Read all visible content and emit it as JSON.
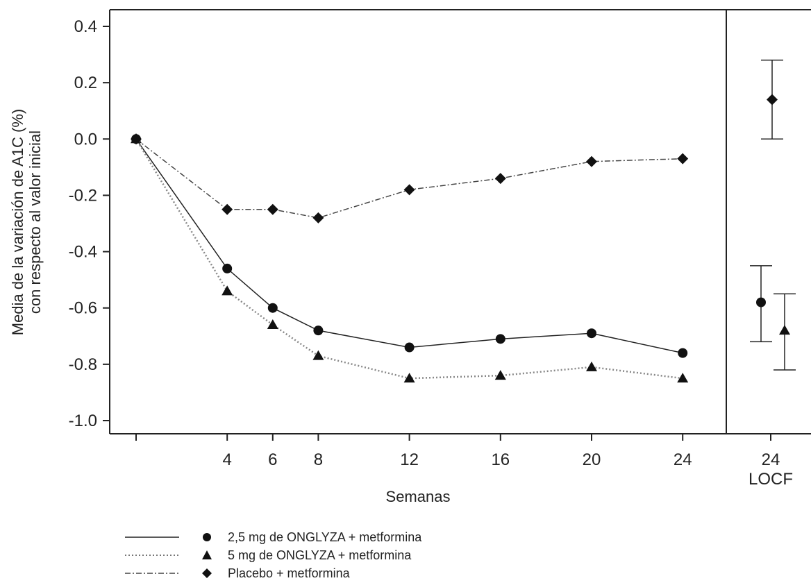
{
  "chart_data": {
    "type": "line",
    "xlabel": "Semanas",
    "ylabel_line1": "Media de la variación de A1C (%)",
    "ylabel_line2": "con respecto al valor inicial",
    "ylim": [
      -1.0,
      0.4
    ],
    "yticks": [
      "0.4",
      "0.2",
      "0.0",
      "-0.2",
      "-0.4",
      "-0.6",
      "-0.8",
      "-1.0"
    ],
    "ytick_values": [
      0.4,
      0.2,
      0.0,
      -0.2,
      -0.4,
      -0.6,
      -0.8,
      -1.0
    ],
    "xticks": [
      4,
      6,
      8,
      12,
      16,
      20,
      24
    ],
    "x": [
      0,
      4,
      6,
      8,
      12,
      16,
      20,
      24
    ],
    "series": [
      {
        "name": "2,5 mg de ONGLYZA + metformina",
        "marker": "circle",
        "line_style": "solid",
        "values": [
          0.0,
          -0.46,
          -0.6,
          -0.68,
          -0.74,
          -0.71,
          -0.69,
          -0.76
        ],
        "locf": {
          "mean": -0.58,
          "lower": -0.72,
          "upper": -0.45
        }
      },
      {
        "name": "5 mg de ONGLYZA + metformina",
        "marker": "triangle",
        "line_style": "dotted",
        "values": [
          0.0,
          -0.54,
          -0.66,
          -0.77,
          -0.85,
          -0.84,
          -0.81,
          -0.85
        ],
        "locf": {
          "mean": -0.68,
          "lower": -0.82,
          "upper": -0.55
        }
      },
      {
        "name": "Placebo + metformina",
        "marker": "diamond",
        "line_style": "dashdot",
        "values": [
          0.0,
          -0.25,
          -0.25,
          -0.28,
          -0.18,
          -0.14,
          -0.08,
          -0.07
        ],
        "locf": {
          "mean": 0.14,
          "lower": 0.0,
          "upper": 0.28
        }
      }
    ],
    "locf_panel": {
      "tick_label": "24",
      "sublabel": "LOCF"
    },
    "legend_position": "bottom-left",
    "grid": false
  }
}
